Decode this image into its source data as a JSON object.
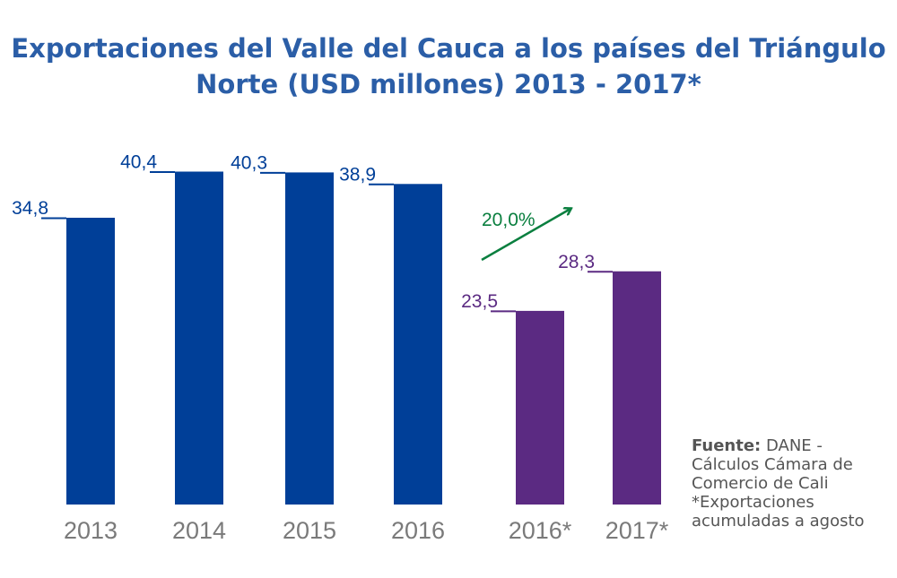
{
  "title_line1": "Exportaciones del Valle del Cauca a los países del Triángulo",
  "title_line2": "Norte (USD millones) 2013 - 2017*",
  "source": {
    "label": "Fuente:",
    "text_after_label": "DANE -",
    "line2": "Cálculos Cámara de",
    "line3": "Comercio de Cali",
    "line4": "*Exportaciones",
    "line5": "acumuladas a agosto"
  },
  "colors": {
    "annual": "#003f98",
    "partial": "#5b2a82",
    "growth": "#0a7f3f",
    "title": "#2b5ea7",
    "axis_label": "#7a7a7a"
  },
  "chart_data": {
    "type": "bar",
    "categories": [
      "2013",
      "2014",
      "2015",
      "2016",
      "2016*",
      "2017*"
    ],
    "values": [
      34.8,
      40.4,
      40.3,
      38.9,
      23.5,
      28.3
    ],
    "value_labels": [
      "34,8",
      "40,4",
      "40,3",
      "38,9",
      "23,5",
      "28,3"
    ],
    "bar_groups": [
      "annual",
      "annual",
      "annual",
      "annual",
      "partial",
      "partial"
    ],
    "annotation": {
      "text": "20,0%",
      "from_category": "2016*",
      "to_category": "2017*"
    },
    "ylim": [
      0,
      46
    ],
    "grid": false
  }
}
